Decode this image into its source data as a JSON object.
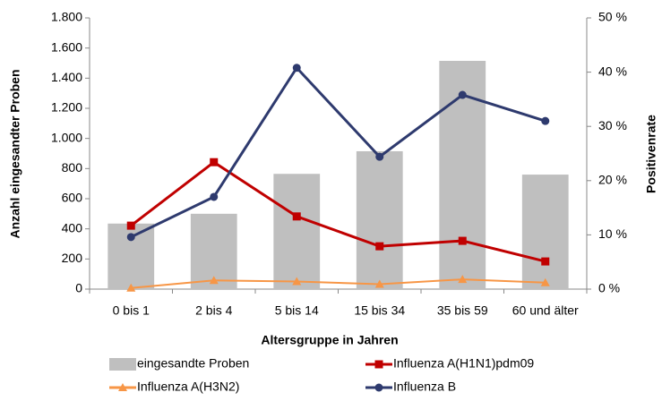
{
  "chart_data": {
    "type": "bar-line",
    "x_label": "Altersgruppe in Jahren",
    "y_label": "Anzahl eingesandter Proben",
    "y2_label": "Positivenrate",
    "categories": [
      "0 bis 1",
      "2 bis 4",
      "5 bis 14",
      "15 bis 34",
      "35 bis 59",
      "60 und älter"
    ],
    "series": [
      {
        "name": "eingesandte Proben",
        "kind": "bar",
        "color": "#bfbfbf",
        "values": [
          435,
          500,
          765,
          915,
          1515,
          760
        ]
      },
      {
        "name": "Influenza A(H1N1)pdm09",
        "kind": "line",
        "marker": "square",
        "axis": "y2",
        "color": "#c00000",
        "values": [
          11.7,
          23.4,
          13.4,
          7.9,
          8.9,
          5.1
        ]
      },
      {
        "name": "Influenza A(H3N2)",
        "kind": "line",
        "marker": "triangle",
        "axis": "y2",
        "color": "#f79646",
        "values": [
          0.2,
          1.6,
          1.4,
          0.9,
          1.8,
          1.2
        ]
      },
      {
        "name": "Influenza B",
        "kind": "line",
        "marker": "circle",
        "axis": "y2",
        "color": "#2e3a6e",
        "values": [
          9.6,
          17.0,
          40.8,
          24.4,
          35.8,
          31.0
        ]
      }
    ],
    "ylim": [
      0,
      1800
    ],
    "yticks": [
      0,
      200,
      400,
      600,
      800,
      {
        "value": 1000,
        "label": "1.000"
      },
      {
        "value": 1200,
        "label": "1.200"
      },
      {
        "value": 1400,
        "label": "1.400"
      },
      {
        "value": 1600,
        "label": "1.600"
      },
      {
        "value": 1800,
        "label": "1.800"
      }
    ],
    "y2lim": [
      0,
      50
    ],
    "y2ticks": [
      {
        "value": 0,
        "label": "0 %"
      },
      {
        "value": 10,
        "label": "10 %"
      },
      {
        "value": 20,
        "label": "20 %"
      },
      {
        "value": 30,
        "label": "30 %"
      },
      {
        "value": 40,
        "label": "40 %"
      },
      {
        "value": 50,
        "label": "50 %"
      }
    ],
    "grid": false
  }
}
